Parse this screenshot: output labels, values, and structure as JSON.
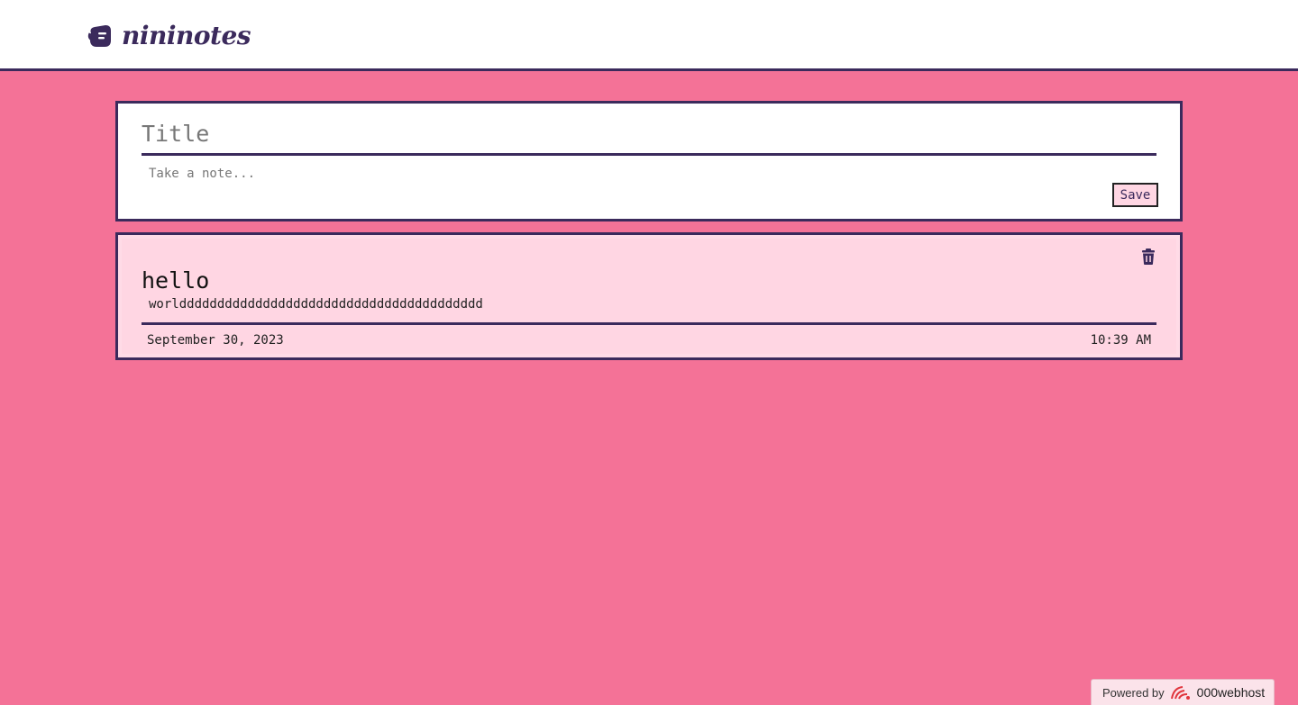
{
  "header": {
    "brand_name": "nininotes",
    "logo_icon": "note-hand-icon"
  },
  "composer": {
    "title_placeholder": "Title",
    "note_placeholder": "Take a note...",
    "save_label": "Save"
  },
  "notes": [
    {
      "title": "hello",
      "body": "worldddddddddddddddddddddddddddddddddddddddd",
      "date": "September 30, 2023",
      "time": "10:39 AM",
      "delete_icon": "trash-icon"
    }
  ],
  "footer_badge": {
    "prefix": "Powered by",
    "brand": "000webhost",
    "logo_icon": "000webhost-logo-icon"
  },
  "colors": {
    "background": "#f47297",
    "accent": "#3b2a5c",
    "card": "#ffd6e3"
  }
}
